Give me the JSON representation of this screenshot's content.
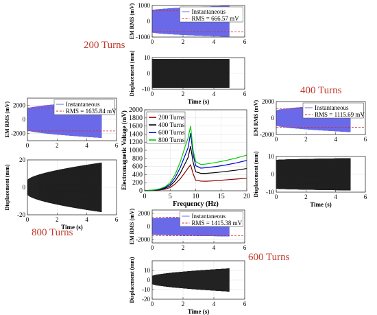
{
  "figure": {
    "turn_labels": [
      {
        "key": "t200",
        "text": "200 Turns",
        "color": "#c0392b"
      },
      {
        "key": "t400",
        "text": "400 Turns",
        "color": "#c0392b"
      },
      {
        "key": "t600",
        "text": "600 Turns",
        "color": "#c0392b"
      },
      {
        "key": "t800",
        "text": "800 Turns",
        "color": "#c0392b"
      }
    ]
  },
  "chart_data": [
    {
      "id": "center",
      "type": "line",
      "xlabel": "Frequency (Hz)",
      "ylabel": "Electromagnetic Voltage (mV)",
      "xlim": [
        0,
        20
      ],
      "ylim": [
        0,
        2000
      ],
      "xticks": [
        0,
        5,
        10,
        15,
        20
      ],
      "yticks": [
        0,
        200,
        400,
        600,
        800,
        1000,
        1200,
        1400,
        1600,
        1800,
        2000
      ],
      "grid": true,
      "legend_position": "top-left",
      "x": [
        0,
        1,
        2,
        3,
        4,
        5,
        6,
        7,
        8,
        8.5,
        9,
        9.5,
        10,
        11,
        12,
        14,
        16,
        18,
        20
      ],
      "series": [
        {
          "name": "200 Turns",
          "color": "#8B0000",
          "values": [
            0,
            5,
            10,
            20,
            40,
            80,
            170,
            300,
            470,
            560,
            640,
            420,
            260,
            240,
            235,
            250,
            270,
            290,
            310
          ]
        },
        {
          "name": "400 Turns",
          "color": "#000000",
          "values": [
            0,
            8,
            15,
            30,
            60,
            120,
            250,
            440,
            690,
            820,
            1100,
            700,
            470,
            430,
            430,
            450,
            480,
            510,
            550
          ]
        },
        {
          "name": "600 Turns",
          "color": "#0000CD",
          "values": [
            0,
            10,
            20,
            40,
            80,
            160,
            330,
            580,
            900,
            1060,
            1420,
            900,
            620,
            560,
            570,
            600,
            640,
            690,
            750
          ]
        },
        {
          "name": "800 Turns",
          "color": "#00CC00",
          "values": [
            0,
            12,
            25,
            50,
            100,
            200,
            410,
            720,
            1120,
            1300,
            1600,
            1000,
            720,
            650,
            660,
            700,
            750,
            810,
            880
          ]
        }
      ]
    },
    {
      "id": "em200",
      "type": "line",
      "ylabel": "EM RMS (mV)",
      "xlim": [
        0,
        6
      ],
      "ylim": [
        -1000,
        1000
      ],
      "xticks": [
        0,
        2,
        4,
        6
      ],
      "yticks": [
        -1000,
        0,
        1000
      ],
      "grid": true,
      "legend": [
        "Instantaneous",
        "RMS = 666.57 mV"
      ],
      "rms": 666.57,
      "signal": {
        "t_end": 5.0,
        "amp_start": 700,
        "amp_end": 980,
        "amp_max": 980
      }
    },
    {
      "id": "disp200",
      "type": "line",
      "xlabel": "Time (s)",
      "ylabel": "Displacement (mm)",
      "xlim": [
        0,
        6
      ],
      "ylim": [
        -10,
        10
      ],
      "xticks": [
        0,
        2,
        4,
        6
      ],
      "yticks": [
        -10,
        0,
        10
      ],
      "grid": true,
      "signal": {
        "t_end": 5.0,
        "amp_start": 9,
        "amp_end": 9,
        "amp_max": 9
      }
    },
    {
      "id": "em400",
      "type": "line",
      "ylabel": "EM RMS (mV)",
      "xlim": [
        0,
        6
      ],
      "ylim": [
        -2000,
        2000
      ],
      "xticks": [
        0,
        2,
        4,
        6
      ],
      "yticks": [
        -2000,
        0,
        2000
      ],
      "grid": true,
      "legend": [
        "Instantaneous",
        "RMS = 1115.69 mV"
      ],
      "rms": 1115.69,
      "signal": {
        "t_end": 5.0,
        "amp_start": 900,
        "amp_end": 1700,
        "amp_max": 1700
      }
    },
    {
      "id": "disp400",
      "type": "line",
      "xlabel": "Time (s)",
      "ylabel": "Displacement (mm)",
      "xlim": [
        0,
        6
      ],
      "ylim": [
        -10,
        10
      ],
      "xticks": [
        0,
        2,
        4,
        6
      ],
      "yticks": [
        -10,
        0,
        10
      ],
      "grid": true,
      "signal": {
        "t_end": 5.0,
        "amp_start": 8,
        "amp_end": 9,
        "amp_max": 9
      }
    },
    {
      "id": "em800",
      "type": "line",
      "ylabel": "EM RMS (mV)",
      "xlim": [
        0,
        6
      ],
      "ylim": [
        -3000,
        3000
      ],
      "xticks": [
        0,
        2,
        4,
        6
      ],
      "yticks": [
        -2000,
        0,
        2000
      ],
      "grid": true,
      "legend": [
        "Instantaneous",
        "RMS = 1635.84 mV"
      ],
      "rms": 1635.84,
      "signal": {
        "t_end": 5.0,
        "amp_start": 1500,
        "amp_end": 2600,
        "amp_max": 3000
      }
    },
    {
      "id": "disp800",
      "type": "line",
      "xlabel": "Time (s)",
      "ylabel": "Displacement (mm)",
      "xlim": [
        0,
        6
      ],
      "ylim": [
        -20,
        20
      ],
      "xticks": [
        0,
        2,
        4,
        6
      ],
      "yticks": [
        -20,
        0,
        20
      ],
      "grid": true,
      "signal": {
        "t_end": 5.0,
        "amp_start": 5,
        "amp_end": 18,
        "amp_max": 18
      }
    },
    {
      "id": "em600",
      "type": "line",
      "ylabel": "EM RMS (mV)",
      "xlim": [
        0,
        6
      ],
      "ylim": [
        -2500,
        2500
      ],
      "xticks": [
        0,
        2,
        4,
        6
      ],
      "yticks": [
        -2000,
        0,
        2000
      ],
      "grid": true,
      "legend": [
        "Instantaneous",
        "RMS = 1415.38 mV"
      ],
      "rms": 1415.38,
      "signal": {
        "t_end": 5.0,
        "amp_start": 1200,
        "amp_end": 1500,
        "amp_max": 2500
      }
    },
    {
      "id": "disp600",
      "type": "line",
      "xlabel": "Time (s)",
      "ylabel": "Displacement (mm)",
      "xlim": [
        0,
        6
      ],
      "ylim": [
        -20,
        20
      ],
      "xticks": [
        0,
        2,
        4,
        6
      ],
      "yticks": [
        -20,
        -10,
        0,
        10
      ],
      "grid": true,
      "signal": {
        "t_end": 5.0,
        "amp_start": 4,
        "amp_end": 12,
        "amp_max": 17
      }
    }
  ]
}
